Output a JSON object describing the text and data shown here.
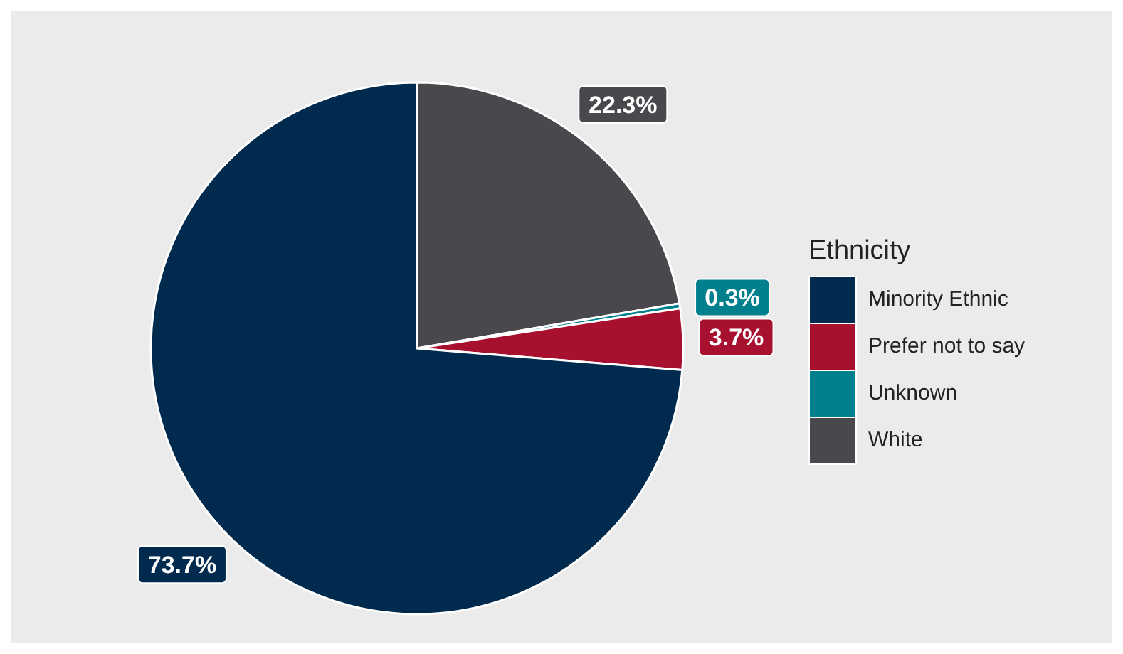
{
  "chart_data": {
    "type": "pie",
    "legend_title": "Ethnicity",
    "categories": [
      "Minority Ethnic",
      "Prefer not to say",
      "Unknown",
      "White"
    ],
    "values": [
      73.7,
      3.7,
      0.3,
      22.3
    ],
    "colors": [
      "#002b4e",
      "#a8102f",
      "#00808c",
      "#48484d"
    ],
    "value_labels": [
      "73.7%",
      "3.7%",
      "0.3%",
      "22.3%"
    ],
    "legend": "right"
  }
}
